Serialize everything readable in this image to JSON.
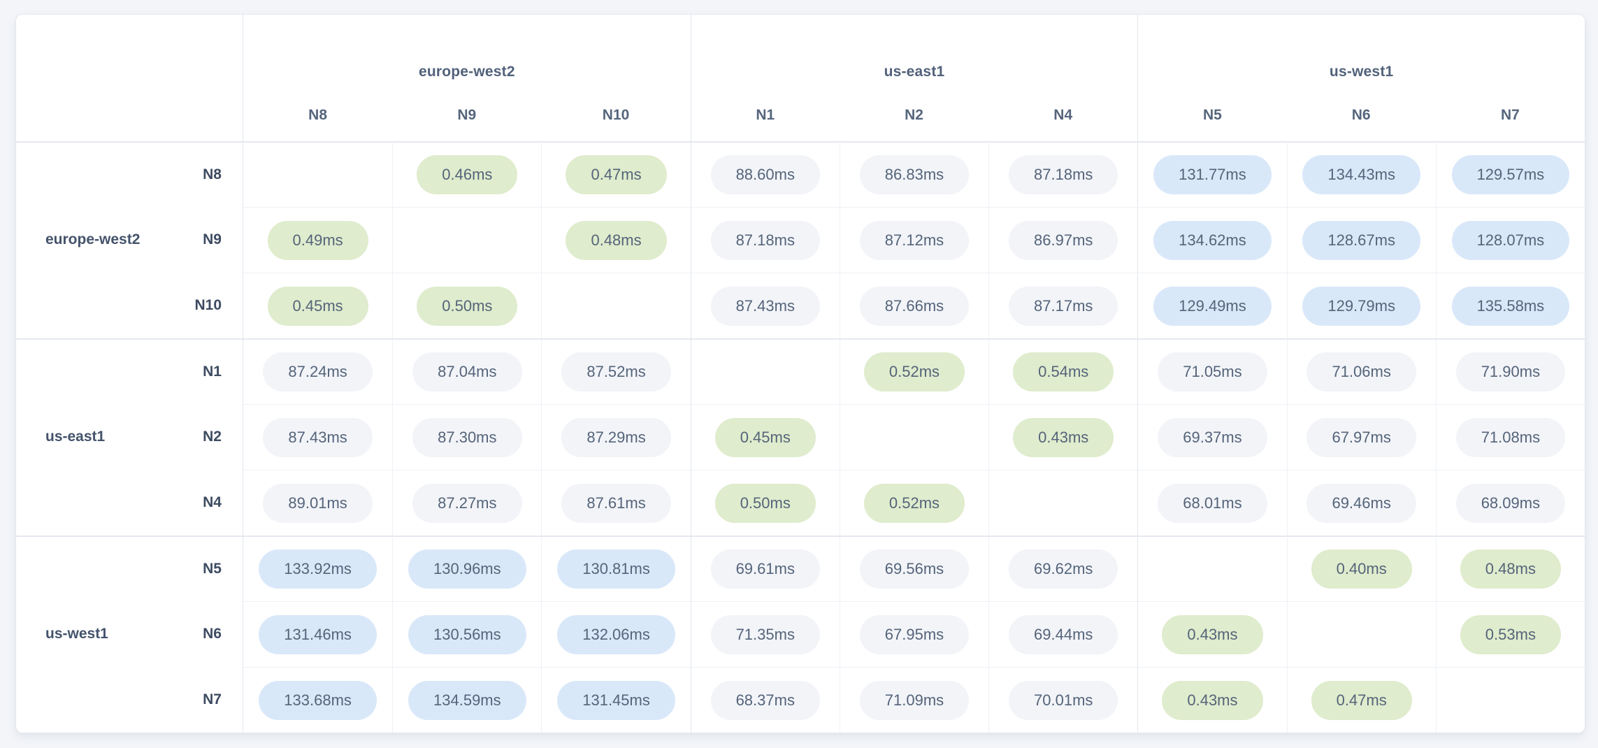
{
  "page": {
    "background": "#f3f5f9"
  },
  "card": {
    "background": "#ffffff",
    "border": "#e4e7ee"
  },
  "style": {
    "pill_text": "#55647a",
    "header_text": "#51617a",
    "region_label_text": "#44536b",
    "node_label_text": "#3d4b61",
    "tone_colors": {
      "local": "#dfeccd",
      "mid": "#f2f4f8",
      "far": "#d9e8f9"
    },
    "thresholds_ms": {
      "local_max": 1,
      "mid_max": 100
    }
  },
  "chart_data": {
    "type": "heatmap",
    "unit": "ms",
    "value_decimals": 2,
    "groups": [
      {
        "region": "europe-west2",
        "nodes": [
          "N8",
          "N9",
          "N10"
        ]
      },
      {
        "region": "us-east1",
        "nodes": [
          "N1",
          "N2",
          "N4"
        ]
      },
      {
        "region": "us-west1",
        "nodes": [
          "N5",
          "N6",
          "N7"
        ]
      }
    ],
    "columns": [
      "N8",
      "N9",
      "N10",
      "N1",
      "N2",
      "N4",
      "N5",
      "N6",
      "N7"
    ],
    "rows": [
      "N8",
      "N9",
      "N10",
      "N1",
      "N2",
      "N4",
      "N5",
      "N6",
      "N7"
    ],
    "values_ms": [
      [
        null,
        0.46,
        0.47,
        88.6,
        86.83,
        87.18,
        131.77,
        134.43,
        129.57
      ],
      [
        0.49,
        null,
        0.48,
        87.18,
        87.12,
        86.97,
        134.62,
        128.67,
        128.07
      ],
      [
        0.45,
        0.5,
        null,
        87.43,
        87.66,
        87.17,
        129.49,
        129.79,
        135.58
      ],
      [
        87.24,
        87.04,
        87.52,
        null,
        0.52,
        0.54,
        71.05,
        71.06,
        71.9
      ],
      [
        87.43,
        87.3,
        87.29,
        0.45,
        null,
        0.43,
        69.37,
        67.97,
        71.08
      ],
      [
        89.01,
        87.27,
        87.61,
        0.5,
        0.52,
        null,
        68.01,
        69.46,
        68.09
      ],
      [
        133.92,
        130.96,
        130.81,
        69.61,
        69.56,
        69.62,
        null,
        0.4,
        0.48
      ],
      [
        131.46,
        130.56,
        132.06,
        71.35,
        67.95,
        69.44,
        0.43,
        null,
        0.53
      ],
      [
        133.68,
        134.59,
        131.45,
        68.37,
        71.09,
        70.01,
        0.43,
        0.47,
        null
      ]
    ]
  }
}
